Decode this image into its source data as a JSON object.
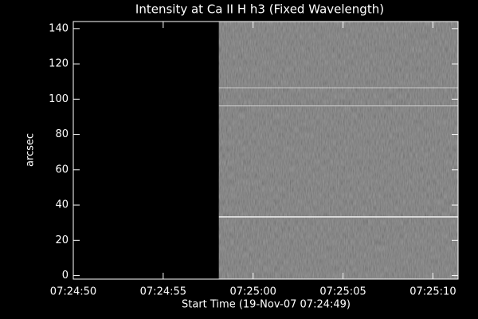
{
  "chart_data": {
    "type": "image",
    "title": "Intensity at Ca II H h3 (Fixed Wavelength)",
    "xlabel": "Start Time (19-Nov-07 07:24:49)",
    "ylabel": "arcsec",
    "xlim": [
      1,
      22.4
    ],
    "xticks": [
      {
        "value": 1,
        "label": "07:24:50"
      },
      {
        "value": 6,
        "label": "07:24:55"
      },
      {
        "value": 11,
        "label": "07:25:00"
      },
      {
        "value": 16,
        "label": "07:25:05"
      },
      {
        "value": 21,
        "label": "07:25:10"
      }
    ],
    "ylim": [
      -2,
      144
    ],
    "yticks": [
      0,
      20,
      40,
      60,
      80,
      100,
      120,
      140
    ],
    "image_start": 9.1,
    "bright_rows": [
      33.3,
      96.2,
      106.5
    ],
    "background": "#000000",
    "image_color": "#6a6a6a",
    "axis_color": "#ffffff"
  }
}
